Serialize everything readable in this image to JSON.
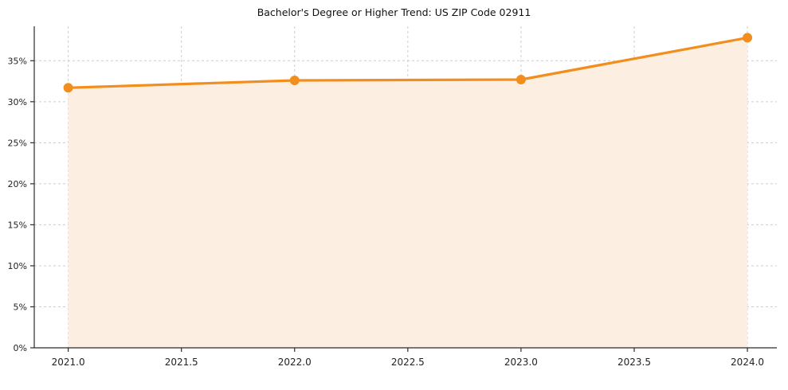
{
  "chart_data": {
    "type": "line",
    "title": "Bachelor's Degree or Higher Trend: US ZIP Code 02911",
    "series_name": "Bachelor's Degree or Higher",
    "x": [
      2021,
      2022,
      2023,
      2024
    ],
    "values": [
      31.7,
      32.6,
      32.7,
      37.8
    ],
    "xlabel": "",
    "ylabel": "",
    "xlim": [
      2020.85,
      2024.13
    ],
    "ylim": [
      0,
      39.2
    ],
    "x_ticks": [
      2021.0,
      2021.5,
      2022.0,
      2022.5,
      2023.0,
      2023.5,
      2024.0
    ],
    "x_tick_labels": [
      "2021.0",
      "2021.5",
      "2022.0",
      "2022.5",
      "2023.0",
      "2023.5",
      "2024.0"
    ],
    "y_ticks": [
      0,
      5,
      10,
      15,
      20,
      25,
      30,
      35
    ],
    "y_tick_labels": [
      "0%",
      "5%",
      "10%",
      "15%",
      "20%",
      "25%",
      "30%",
      "35%"
    ],
    "grid": true,
    "grid_style": "dashed",
    "legend_position": "none",
    "colors": {
      "line": "#f28e1e",
      "marker": "#f28e1e",
      "area_fill": "#fcefe1",
      "grid": "#cccccc",
      "spine": "#2b2b2b",
      "tick_label": "#222222",
      "background": "#ffffff"
    }
  }
}
